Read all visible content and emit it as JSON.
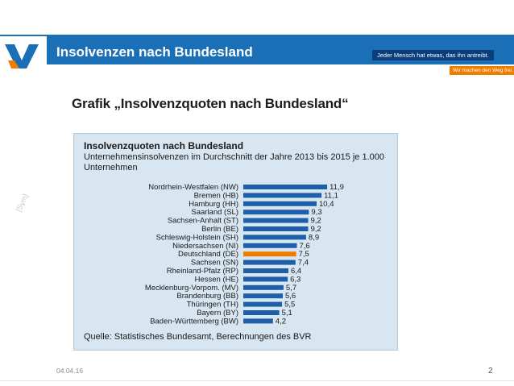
{
  "slide": {
    "title": "Insolvenzen nach Bundesland",
    "slogan_primary": "Jeder Mensch hat etwas, das ihn antreibt.",
    "slogan_secondary": "Wir machen den Weg frei.",
    "watermark": "[Sym]",
    "picture_heading": "Grafik „Insolvenzquoten nach Bundesland“",
    "date": "04.04.16",
    "page_number": "2"
  },
  "colors": {
    "header_blue": "#1b6fb6",
    "bar_blue": "#1f5ea8",
    "highlight_orange": "#f07d00",
    "panel_background": "#d7e6f1"
  },
  "chart_data": {
    "type": "bar",
    "orientation": "horizontal",
    "title": "Insolvenzquoten nach Bundesland",
    "subtitle": "Unternehmensinsolvenzen im Durchschnitt der Jahre 2013 bis 2015 je 1.000 Unternehmen",
    "source": "Quelle: Statistisches Bundesamt, Berechnungen des BVR",
    "categories": [
      "Nordrhein-Westfalen (NW)",
      "Bremen (HB)",
      "Hamburg (HH)",
      "Saarland (SL)",
      "Sachsen-Anhalt (ST)",
      "Berlin (BE)",
      "Schleswig-Holstein (SH)",
      "Niedersachsen (NI)",
      "Deutschland (DE)",
      "Sachsen (SN)",
      "Rheinland-Pfalz (RP)",
      "Hessen (HE)",
      "Mecklenburg-Vorpom. (MV)",
      "Brandenburg (BB)",
      "Thüringen (TH)",
      "Bayern (BY)",
      "Baden-Württemberg (BW)"
    ],
    "values": [
      11.9,
      11.1,
      10.4,
      9.3,
      9.2,
      9.2,
      8.9,
      7.6,
      7.5,
      7.4,
      6.4,
      6.3,
      5.7,
      5.6,
      5.5,
      5.1,
      4.2
    ],
    "value_labels": [
      "11,9",
      "11,1",
      "10,4",
      "9,3",
      "9,2",
      "9,2",
      "8,9",
      "7,6",
      "7,5",
      "7,4",
      "6,4",
      "6,3",
      "5,7",
      "5,6",
      "5,5",
      "5,1",
      "4,2"
    ],
    "highlighted_category": "Deutschland (DE)",
    "xlim": [
      0,
      12
    ],
    "grid": false,
    "legend": "none"
  }
}
